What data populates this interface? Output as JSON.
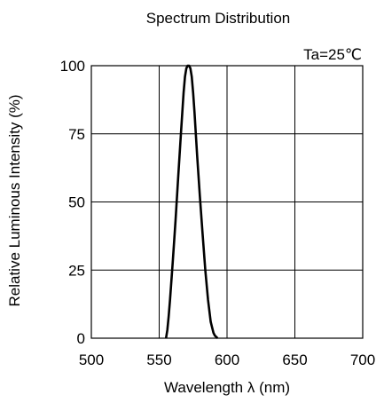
{
  "chart_data": {
    "type": "line",
    "title": "Spectrum Distribution",
    "annotation": "Ta=25℃",
    "xlabel": "Wavelength λ (nm)",
    "ylabel": "Relative Luminous Intensity  (%)",
    "xlim": [
      500,
      700
    ],
    "ylim": [
      0,
      100
    ],
    "xticks": [
      500,
      550,
      600,
      650,
      700
    ],
    "yticks": [
      0,
      25,
      50,
      75,
      100
    ],
    "grid": true,
    "series": [
      {
        "x": [
          555,
          556,
          557,
          558,
          560,
          562,
          564,
          566,
          568,
          569,
          570,
          571,
          572,
          573,
          574,
          575,
          576,
          578,
          580,
          582,
          584,
          586,
          588,
          590,
          591,
          592,
          593
        ],
        "values": [
          0,
          3,
          8,
          14,
          28,
          43,
          59,
          75,
          90,
          96,
          99,
          100,
          100,
          99,
          96,
          90,
          83,
          67,
          52,
          38,
          25,
          14,
          6,
          2,
          1,
          0.5,
          0
        ]
      }
    ]
  }
}
